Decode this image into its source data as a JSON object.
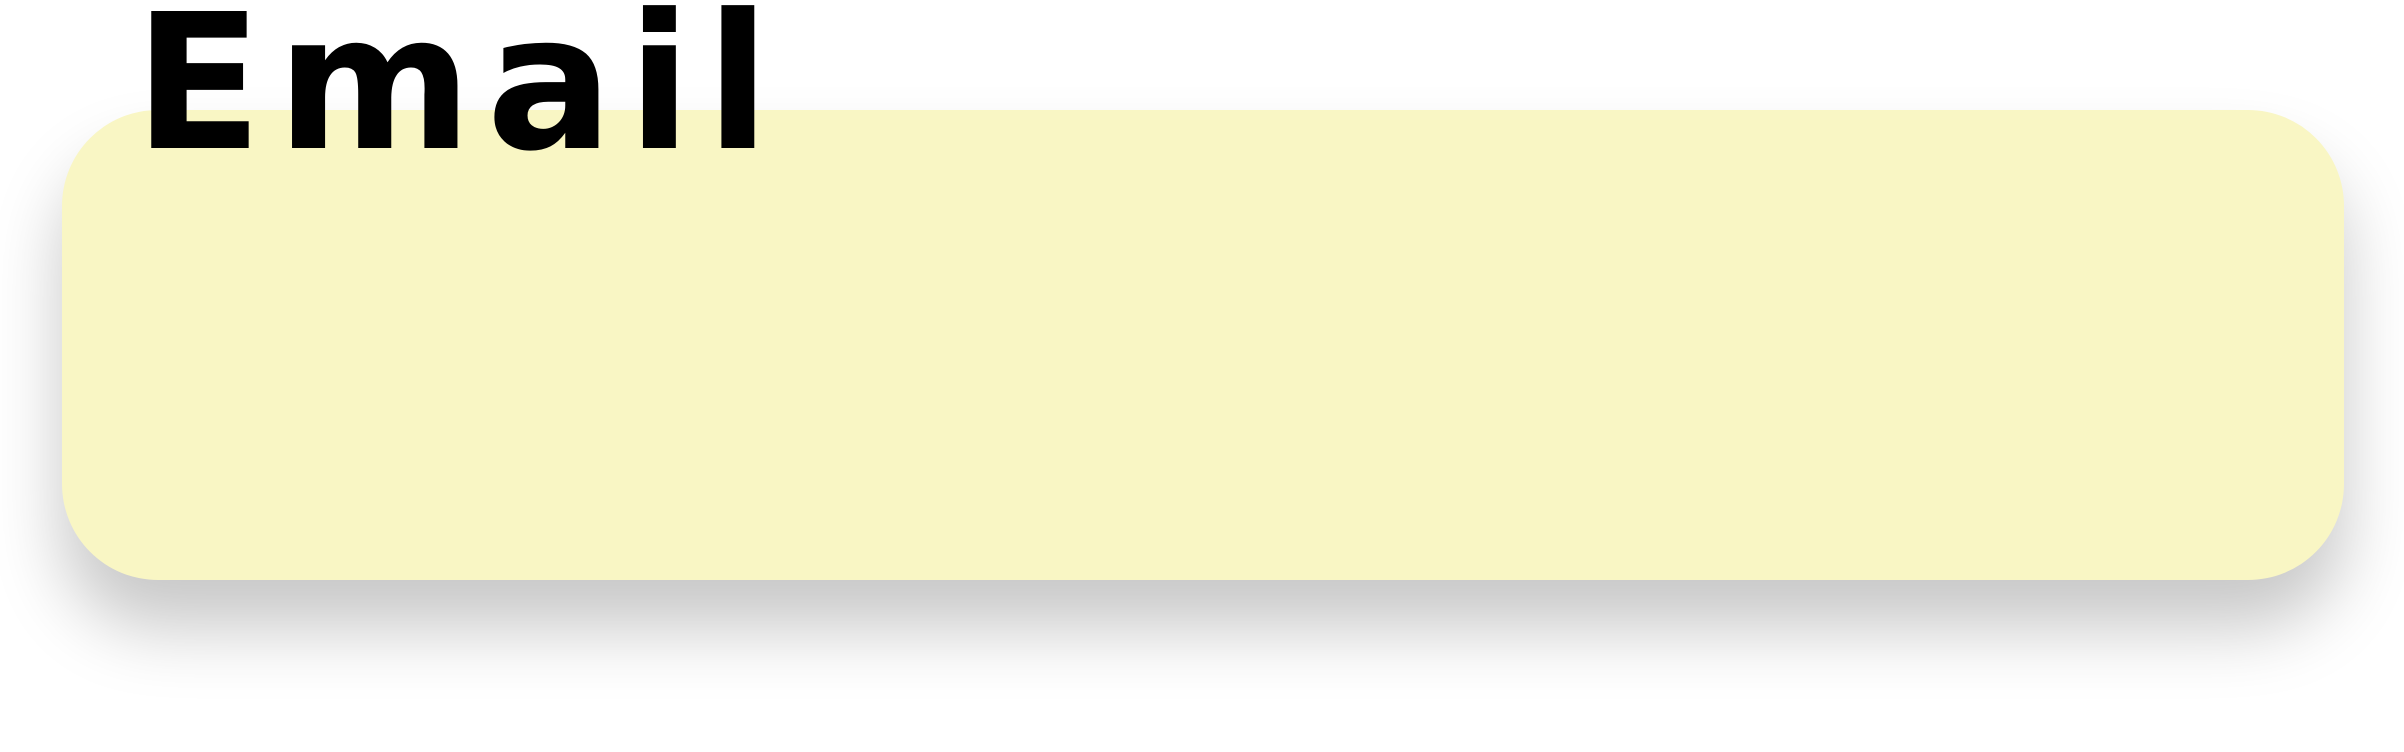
{
  "form": {
    "email": {
      "label": "Email",
      "value": "",
      "placeholder": ""
    }
  },
  "colors": {
    "field_background": "#f9f6c4",
    "label_text": "#000000",
    "page_background": "#ffffff"
  }
}
